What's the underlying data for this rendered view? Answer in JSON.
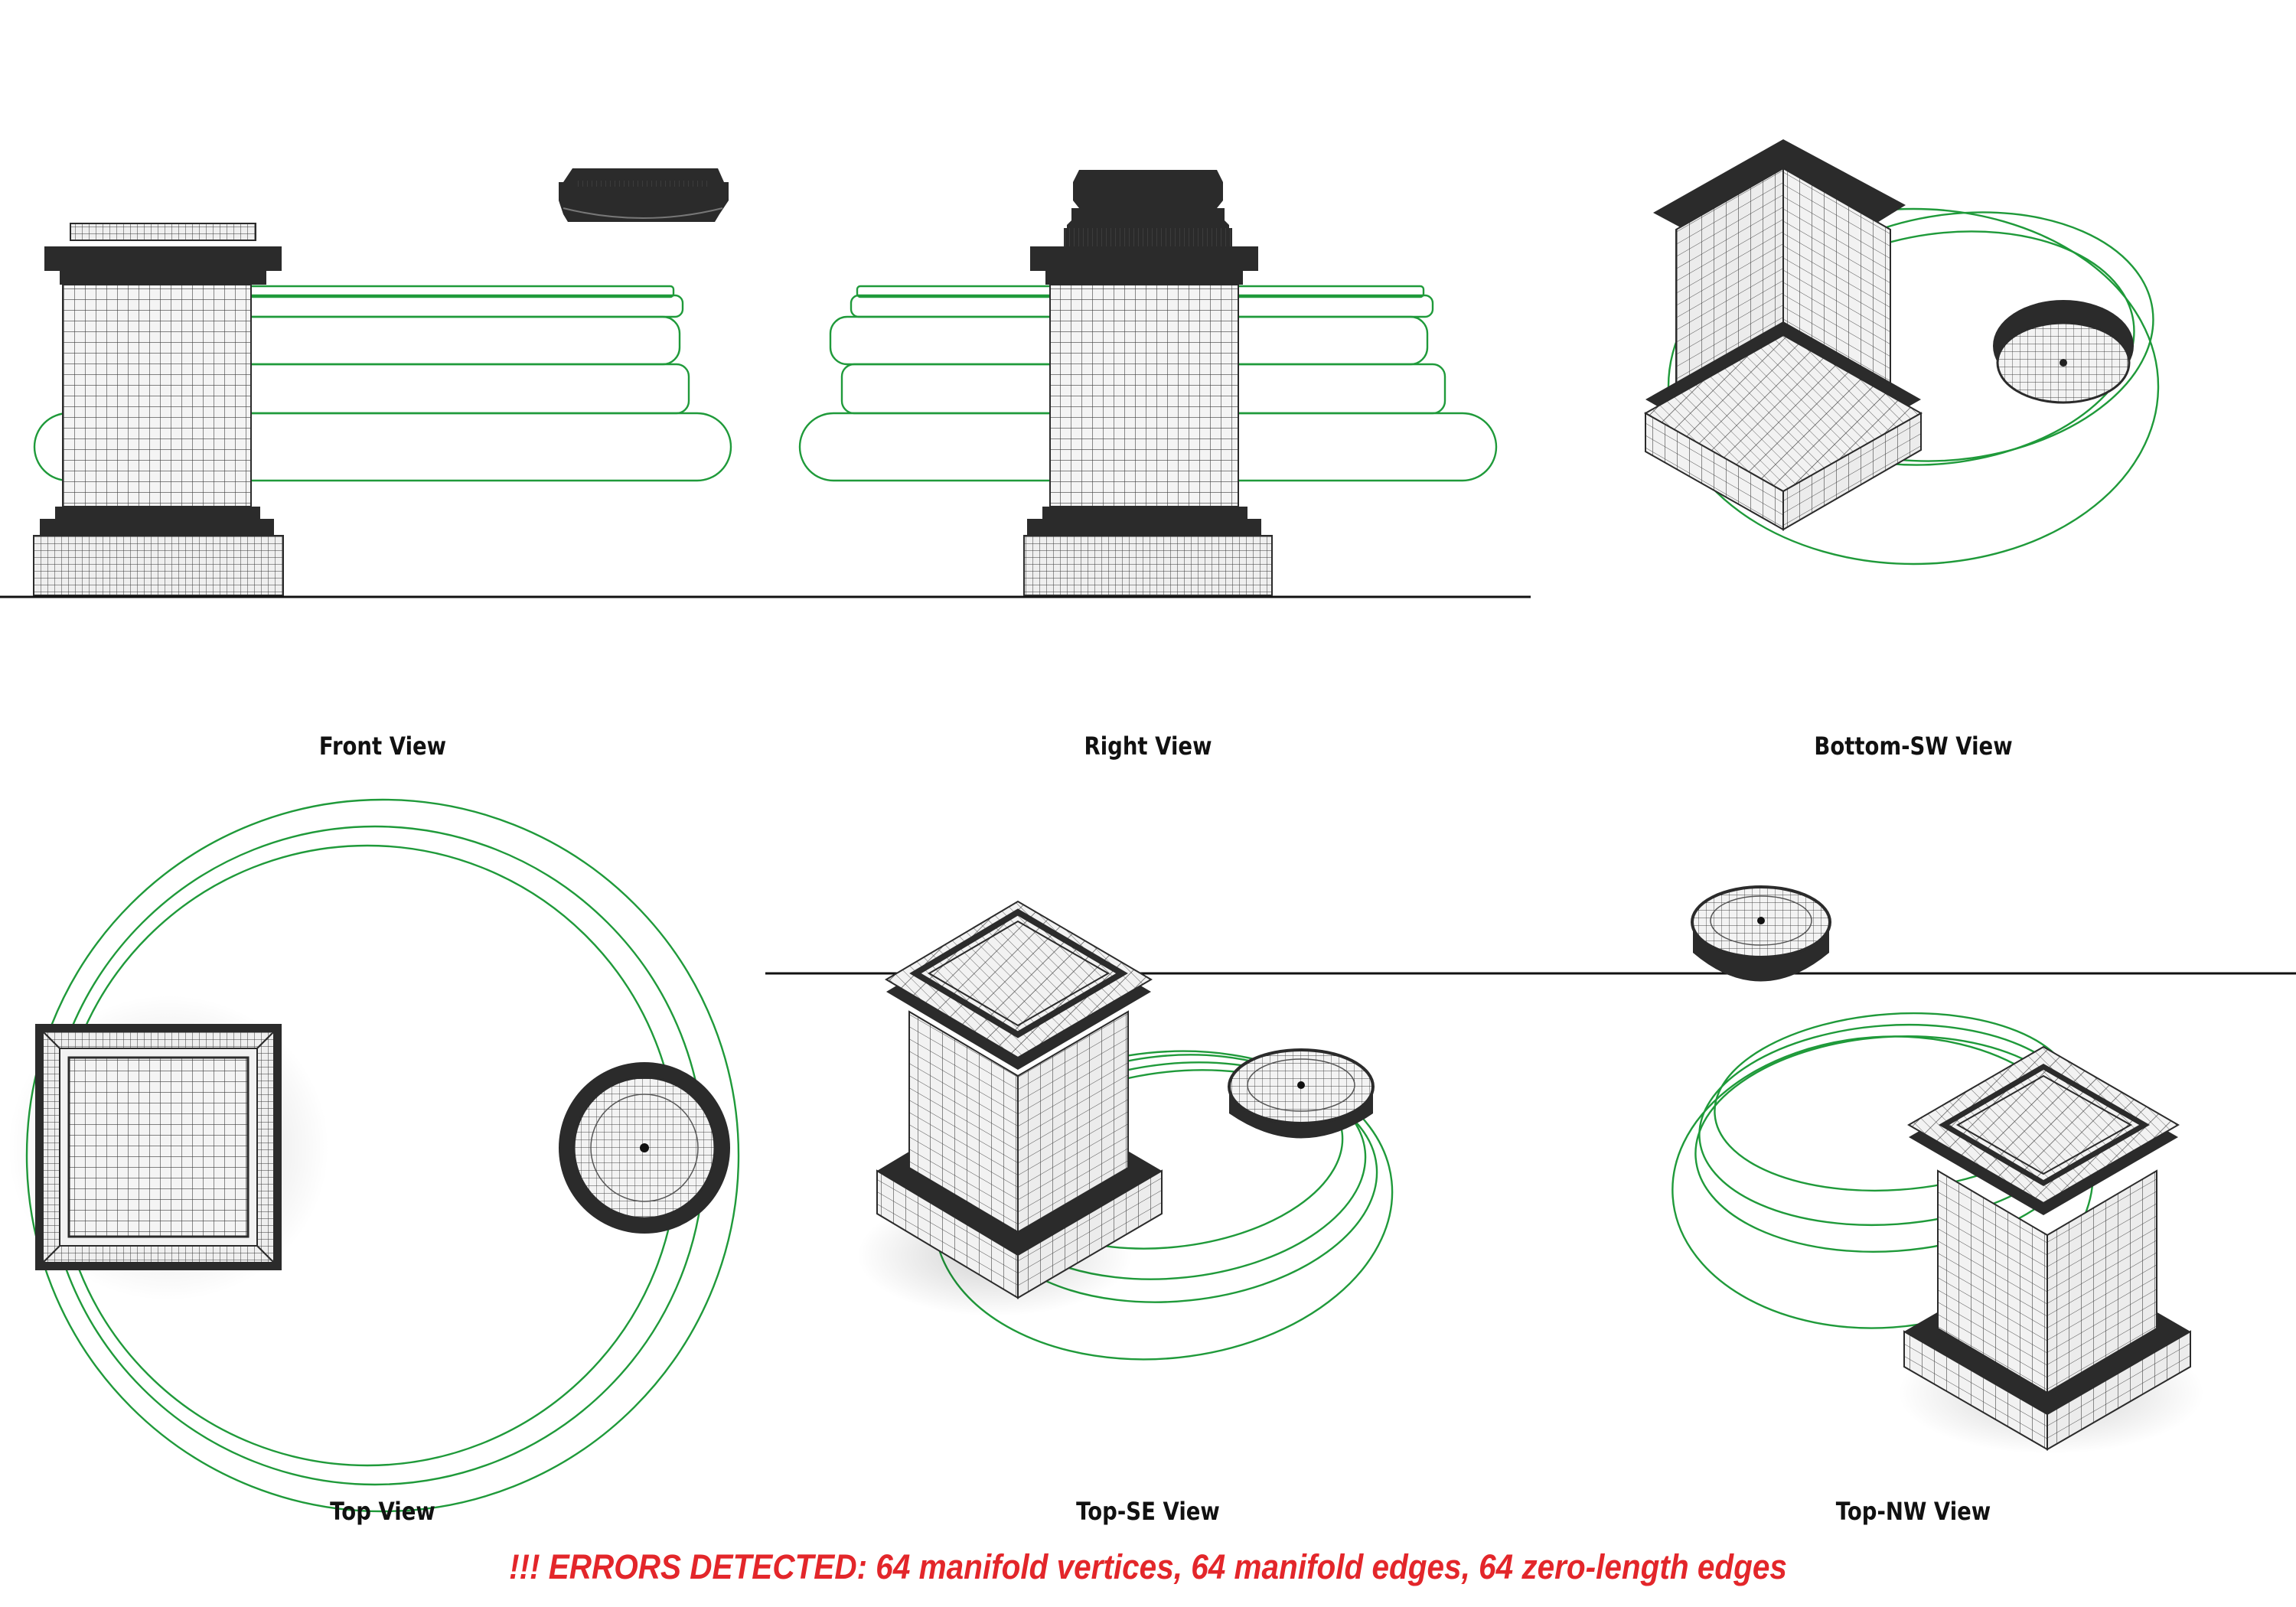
{
  "views": [
    {
      "id": "front",
      "label": "Front View"
    },
    {
      "id": "right",
      "label": "Right View"
    },
    {
      "id": "bottom_sw",
      "label": "Bottom-SW View"
    },
    {
      "id": "top",
      "label": "Top View"
    },
    {
      "id": "top_se",
      "label": "Top-SE View"
    },
    {
      "id": "top_nw",
      "label": "Top-NW View"
    }
  ],
  "error_banner": "!!! ERRORS DETECTED: 64 manifold vertices, 64 manifold edges, 64 zero-length edges",
  "colors": {
    "background": "#ffffff",
    "mesh_dark": "#2b2b2b",
    "mesh_face": "#f2f2f2",
    "wire": "#4a4a4a",
    "outline_green": "#1f9a3a",
    "ground_line": "#111111",
    "error_text": "#e3262a"
  }
}
